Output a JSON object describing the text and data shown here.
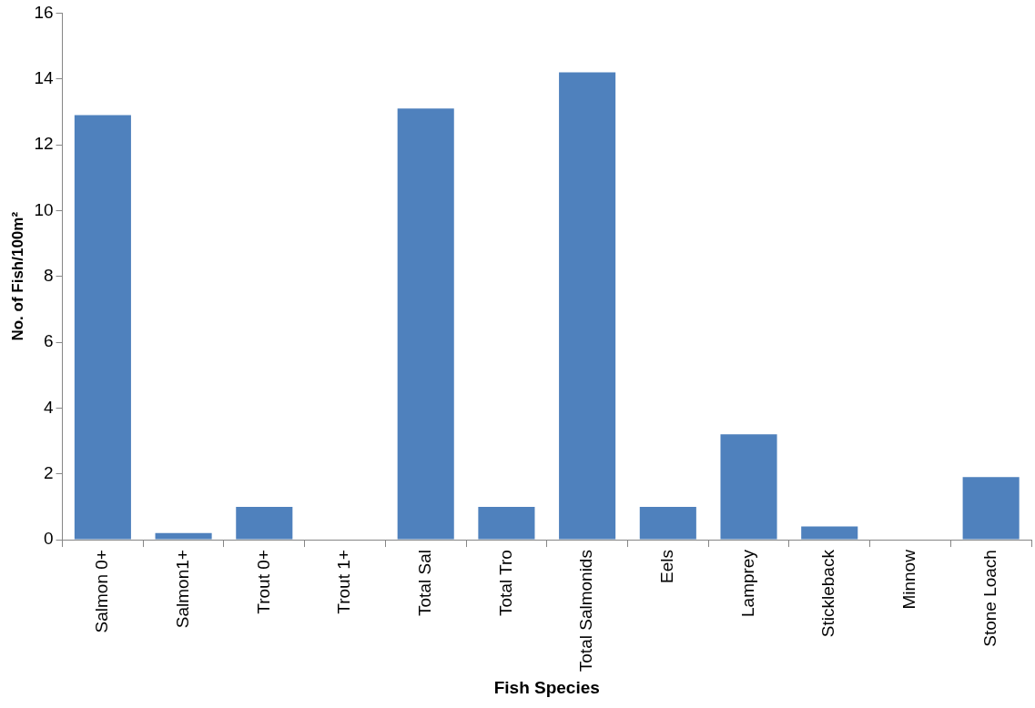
{
  "chart_data": {
    "type": "bar",
    "xlabel": "Fish Species",
    "ylabel": "No. of Fish/100m²",
    "categories": [
      "Salmon 0+",
      "Salmon1+",
      "Trout 0+",
      "Trout 1+",
      "Total Sal",
      "Total Tro",
      "Total Salmonids",
      "Eels",
      "Lamprey",
      "Stickleback",
      "Minnow",
      "Stone Loach"
    ],
    "values": [
      12.9,
      0.2,
      1.0,
      0,
      13.1,
      1.0,
      14.2,
      1.0,
      3.2,
      0.4,
      0,
      1.9
    ],
    "color": "#4f81bd",
    "ylim": [
      0,
      16
    ],
    "yticks": [
      0,
      2,
      4,
      6,
      8,
      10,
      12,
      14,
      16
    ],
    "grid": false,
    "legend": false
  }
}
